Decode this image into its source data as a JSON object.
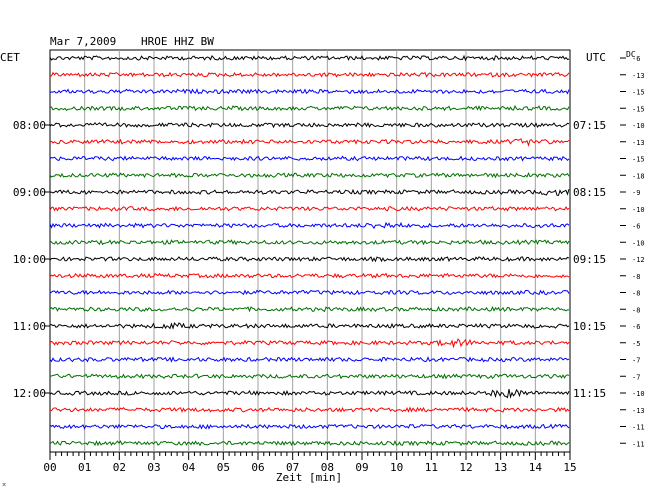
{
  "header": {
    "date": "Mar 7,2009",
    "station": "HROE HHZ BW",
    "left_timezone": "CET",
    "right_timezone": "UTC",
    "dc_label": "DC"
  },
  "footer": {
    "xlabel": "Zeit [min]",
    "corner_mark": "⌅"
  },
  "chart_data": {
    "type": "line",
    "title": "",
    "xlabel": "Zeit [min]",
    "xlim": [
      0,
      15
    ],
    "x_ticks": [
      "00",
      "01",
      "02",
      "03",
      "04",
      "05",
      "06",
      "07",
      "08",
      "09",
      "10",
      "11",
      "12",
      "13",
      "14",
      "15"
    ],
    "trace_count": 24,
    "trace_colors": [
      "#000000",
      "#ff0000",
      "#0000ff",
      "#007000"
    ],
    "left_hour_labels": [
      "08:00",
      "09:00",
      "10:00",
      "11:00",
      "12:00"
    ],
    "right_hour_labels": [
      "07:15",
      "08:15",
      "09:15",
      "10:15",
      "11:15"
    ],
    "dc_offsets": [
      "-6",
      "-13",
      "-15",
      "-15",
      "-10",
      "-13",
      "-15",
      "-18",
      "-9",
      "-10",
      "-6",
      "-10",
      "-12",
      "-8",
      "-8",
      "-8",
      "-6",
      "-5",
      "-7",
      "-7",
      "-10",
      "-13",
      "-11",
      "-11"
    ],
    "events": [
      {
        "trace": 17,
        "minute": 11.7,
        "strength": 2.5
      },
      {
        "trace": 10,
        "minute": 9.6,
        "strength": 2.0
      },
      {
        "trace": 20,
        "minute": 13.2,
        "strength": 3.2
      },
      {
        "trace": 16,
        "minute": 3.5,
        "strength": 1.6
      },
      {
        "trace": 8,
        "minute": 14.6,
        "strength": 2.0
      },
      {
        "trace": 5,
        "minute": 13.8,
        "strength": 1.5
      }
    ]
  }
}
